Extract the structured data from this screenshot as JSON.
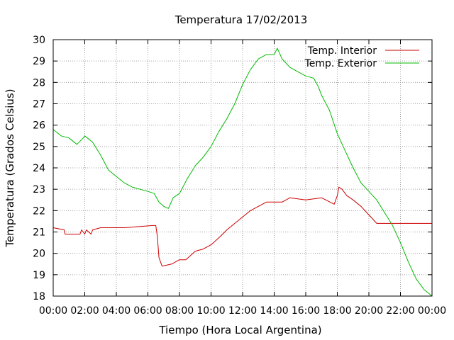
{
  "chart_data": {
    "type": "line",
    "title": "Temperatura 17/02/2013",
    "xlabel": "Tiempo (Hora Local Argentina)",
    "ylabel": "Temperatura (Grados Celsius)",
    "xlim": [
      0,
      24
    ],
    "ylim": [
      18,
      30
    ],
    "x_tick_labels": [
      "00:00",
      "02:00",
      "04:00",
      "06:00",
      "08:00",
      "10:00",
      "12:00",
      "14:00",
      "16:00",
      "18:00",
      "20:00",
      "22:00",
      "00:00"
    ],
    "y_tick_labels": [
      "18",
      "19",
      "20",
      "21",
      "22",
      "23",
      "24",
      "25",
      "26",
      "27",
      "28",
      "29",
      "30"
    ],
    "grid": true,
    "legend_position": "top-right",
    "series": [
      {
        "name": "Temp. Interior",
        "color": "#cc0000",
        "x": [
          0,
          0.7,
          0.75,
          1.7,
          1.8,
          2.0,
          2.1,
          2.4,
          2.5,
          3.0,
          4.5,
          6.3,
          6.5,
          6.6,
          6.7,
          6.8,
          6.9,
          7.5,
          8.0,
          8.4,
          8.7,
          9.0,
          9.5,
          10.0,
          10.3,
          10.6,
          11.0,
          11.5,
          12.0,
          12.5,
          13.0,
          13.5,
          14.5,
          15.0,
          16.0,
          17.0,
          17.8,
          18.0,
          18.1,
          18.3,
          18.6,
          19.0,
          19.5,
          20.0,
          20.5,
          21.0,
          22.0,
          24.0
        ],
        "y": [
          21.2,
          21.1,
          20.9,
          20.9,
          21.1,
          20.9,
          21.1,
          20.9,
          21.1,
          21.2,
          21.2,
          21.3,
          21.3,
          20.8,
          19.8,
          19.6,
          19.4,
          19.5,
          19.7,
          19.7,
          19.9,
          20.1,
          20.2,
          20.4,
          20.6,
          20.8,
          21.1,
          21.4,
          21.7,
          22.0,
          22.2,
          22.4,
          22.4,
          22.6,
          22.5,
          22.6,
          22.3,
          22.7,
          23.1,
          23.0,
          22.7,
          22.5,
          22.2,
          21.8,
          21.4,
          21.4,
          21.4,
          21.4
        ]
      },
      {
        "name": "Temp. Exterior",
        "color": "#00bb00",
        "x": [
          0,
          0.5,
          1.0,
          1.5,
          1.9,
          2.0,
          2.5,
          3.0,
          3.5,
          4.0,
          4.5,
          5.0,
          5.5,
          6.0,
          6.4,
          6.7,
          7.0,
          7.3,
          7.6,
          8.0,
          8.5,
          9.0,
          9.5,
          10.0,
          10.5,
          11.0,
          11.5,
          12.0,
          12.5,
          13.0,
          13.5,
          14.0,
          14.2,
          14.5,
          15.0,
          15.5,
          16.0,
          16.5,
          16.8,
          17.0,
          17.5,
          18.0,
          18.5,
          19.0,
          19.5,
          20.0,
          20.5,
          21.0,
          21.5,
          22.0,
          22.5,
          23.0,
          23.5,
          24.0
        ],
        "y": [
          25.8,
          25.5,
          25.4,
          25.1,
          25.4,
          25.5,
          25.2,
          24.6,
          23.9,
          23.6,
          23.3,
          23.1,
          23.0,
          22.9,
          22.8,
          22.4,
          22.2,
          22.1,
          22.6,
          22.8,
          23.5,
          24.1,
          24.5,
          25.0,
          25.7,
          26.3,
          27.0,
          27.9,
          28.6,
          29.1,
          29.3,
          29.3,
          29.6,
          29.1,
          28.7,
          28.5,
          28.3,
          28.2,
          27.8,
          27.4,
          26.7,
          25.6,
          24.8,
          24.0,
          23.3,
          22.9,
          22.5,
          21.9,
          21.3,
          20.5,
          19.6,
          18.8,
          18.3,
          18.0
        ]
      }
    ]
  }
}
